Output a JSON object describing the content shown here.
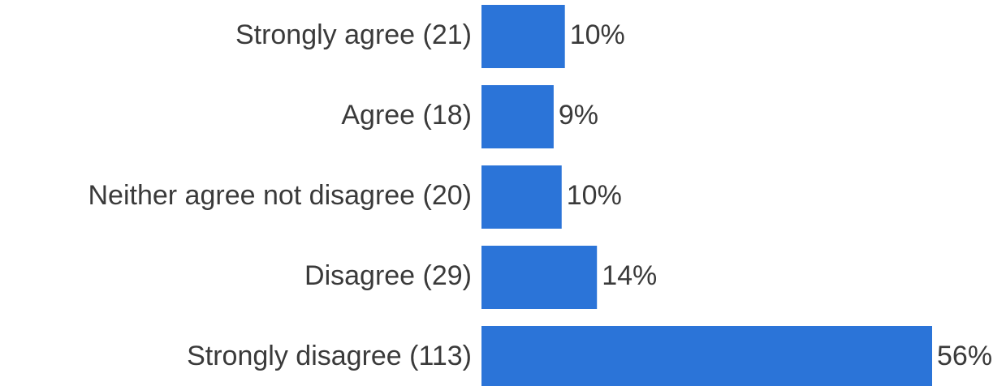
{
  "chart_data": {
    "type": "hbar",
    "categories": [
      "Strongly agree (21)",
      "Agree (18)",
      "Neither agree not disagree (20)",
      "Disagree (29)",
      "Strongly disagree (113)"
    ],
    "values": [
      10.4,
      9.0,
      10.0,
      14.4,
      56.2
    ],
    "value_labels": [
      "10%",
      "9%",
      "10%",
      "14%",
      "56%"
    ],
    "color": "#2b74d8"
  }
}
